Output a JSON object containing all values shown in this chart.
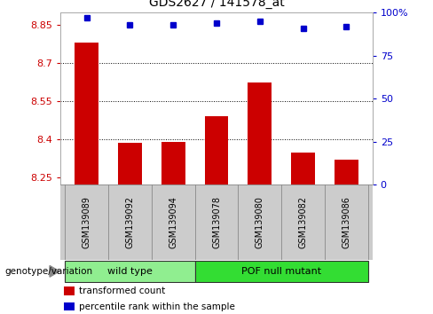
{
  "title": "GDS2627 / 141578_at",
  "samples": [
    "GSM139089",
    "GSM139092",
    "GSM139094",
    "GSM139078",
    "GSM139080",
    "GSM139082",
    "GSM139086"
  ],
  "transformed_counts": [
    8.78,
    8.385,
    8.39,
    8.49,
    8.625,
    8.345,
    8.32
  ],
  "percentile_ranks": [
    97,
    93,
    93,
    94,
    95,
    91,
    92
  ],
  "groups": [
    {
      "name": "wild type",
      "indices": [
        0,
        1,
        2
      ],
      "color": "#90ee90"
    },
    {
      "name": "POF null mutant",
      "indices": [
        3,
        4,
        5,
        6
      ],
      "color": "#33dd33"
    }
  ],
  "ylim_left": [
    8.22,
    8.9
  ],
  "ylim_right": [
    0,
    100
  ],
  "yticks_left": [
    8.25,
    8.4,
    8.55,
    8.7,
    8.85
  ],
  "yticks_right": [
    0,
    25,
    50,
    75,
    100
  ],
  "ytick_labels_left": [
    "8.25",
    "8.4",
    "8.55",
    "8.7",
    "8.85"
  ],
  "ytick_labels_right": [
    "0",
    "25",
    "50",
    "75",
    "100%"
  ],
  "bar_color": "#cc0000",
  "dot_color": "#0000cc",
  "bar_bottom": 8.22,
  "background_color": "#ffffff",
  "grid_color": "#000000",
  "label_transformed": "transformed count",
  "label_percentile": "percentile rank within the sample",
  "genotype_label": "genotype/variation",
  "figsize": [
    4.88,
    3.54
  ],
  "dpi": 100
}
